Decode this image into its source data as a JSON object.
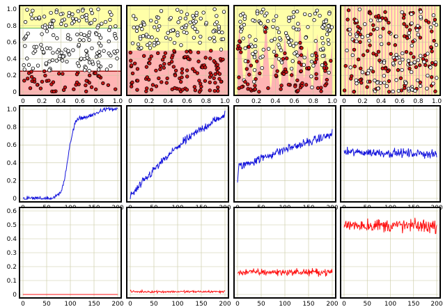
{
  "colors": {
    "panel_border": "#000000",
    "grid": "#c8c8a0",
    "region_high": "#ffffa8",
    "region_low": "#ffb4b4",
    "boundary_good": "#5ab45a",
    "boundary_bad": "#a01010",
    "point_red": "#c81414",
    "point_white": "#ffffff",
    "line_blue": "#1414dc",
    "line_red": "#ff1414"
  },
  "chart_data": [
    {
      "type": "scatter",
      "panel": "r1c1",
      "xlim": [
        0,
        1
      ],
      "ylim": [
        0,
        1
      ],
      "xticks": [
        "0",
        "0.2",
        "0.4",
        "0.6",
        "0.8",
        "1.0"
      ],
      "yticks": [
        "0",
        "0.2",
        "0.4",
        "0.6",
        "0.8",
        "1.0"
      ],
      "region": "two-bands",
      "band_low": [
        0,
        0.25
      ],
      "band_high": [
        0.77,
        1.0
      ],
      "n_points": 220
    },
    {
      "type": "scatter",
      "panel": "r1c2",
      "xlim": [
        0,
        1
      ],
      "ylim": [
        0,
        1
      ],
      "xticks": [
        "0",
        "0.2",
        "0.4",
        "0.6",
        "0.8",
        "1.0"
      ],
      "yticks": [],
      "region": "threshold",
      "threshold": 0.5,
      "n_points": 220
    },
    {
      "type": "scatter",
      "panel": "r1c3",
      "xlim": [
        0,
        1
      ],
      "ylim": [
        0,
        1
      ],
      "xticks": [
        "0",
        "0.2",
        "0.4",
        "0.6",
        "0.8",
        "1.0"
      ],
      "yticks": [],
      "region": "spikes",
      "n_points": 220
    },
    {
      "type": "scatter",
      "panel": "r1c4",
      "xlim": [
        0,
        1
      ],
      "ylim": [
        0,
        1
      ],
      "xticks": [
        "0",
        "0.2",
        "0.4",
        "0.6",
        "0.8",
        "1.0"
      ],
      "yticks": [],
      "region": "stripes",
      "n_points": 220
    },
    {
      "type": "line",
      "panel": "r2c1",
      "series_color": "line_blue",
      "xlim": [
        0,
        200
      ],
      "ylim": [
        0,
        1
      ],
      "xticks": [
        "0",
        "50",
        "100",
        "150",
        "200"
      ],
      "yticks": [
        "0",
        "0.2",
        "0.4",
        "0.6",
        "0.8",
        "1.0"
      ],
      "x": [
        0,
        50,
        60,
        70,
        80,
        88,
        95,
        100,
        105,
        110,
        120,
        130,
        140,
        150,
        160,
        170,
        200
      ],
      "y": [
        0,
        0,
        0,
        0.02,
        0.08,
        0.22,
        0.45,
        0.62,
        0.75,
        0.85,
        0.9,
        0.91,
        0.92,
        0.94,
        0.97,
        1.0,
        1.0
      ],
      "noise": 0.015
    },
    {
      "type": "line",
      "panel": "r2c2",
      "series_color": "line_blue",
      "xlim": [
        0,
        200
      ],
      "ylim": [
        0,
        1
      ],
      "xticks": [
        "0",
        "50",
        "100",
        "150",
        "200"
      ],
      "yticks": [],
      "x": [
        0,
        5,
        50,
        100,
        150,
        200
      ],
      "y": [
        0.03,
        0.05,
        0.32,
        0.58,
        0.78,
        0.94
      ],
      "noise": 0.03
    },
    {
      "type": "line",
      "panel": "r2c3",
      "series_color": "line_blue",
      "xlim": [
        0,
        200
      ],
      "ylim": [
        0,
        1
      ],
      "xticks": [
        "0",
        "50",
        "100",
        "150",
        "200"
      ],
      "yticks": [],
      "x": [
        0,
        3,
        10,
        50,
        100,
        150,
        200
      ],
      "y": [
        0.2,
        0.36,
        0.37,
        0.45,
        0.55,
        0.63,
        0.72
      ],
      "noise": 0.03
    },
    {
      "type": "line",
      "panel": "r2c4",
      "series_color": "line_blue",
      "xlim": [
        0,
        200
      ],
      "ylim": [
        0,
        1
      ],
      "xticks": [
        "0",
        "50",
        "100",
        "150",
        "200"
      ],
      "yticks": [],
      "x": [
        0,
        200
      ],
      "y": [
        0.52,
        0.5
      ],
      "noise": 0.03
    },
    {
      "type": "line",
      "panel": "r3c1",
      "series_color": "line_red",
      "xlim": [
        0,
        200
      ],
      "ylim": [
        0,
        0.6
      ],
      "xticks": [
        "0",
        "50",
        "100",
        "150",
        "200"
      ],
      "yticks": [
        "0",
        "0.1",
        "0.2",
        "0.3",
        "0.4",
        "0.5",
        "0.6"
      ],
      "x": [
        0,
        200
      ],
      "y": [
        0,
        0
      ],
      "noise": 0.0
    },
    {
      "type": "line",
      "panel": "r3c2",
      "series_color": "line_red",
      "xlim": [
        0,
        200
      ],
      "ylim": [
        0,
        0.6
      ],
      "xticks": [
        "0",
        "50",
        "100",
        "150",
        "200"
      ],
      "yticks": [],
      "x": [
        0,
        200
      ],
      "y": [
        0.02,
        0.02
      ],
      "noise": 0.005
    },
    {
      "type": "line",
      "panel": "r3c3",
      "series_color": "line_red",
      "xlim": [
        0,
        200
      ],
      "ylim": [
        0,
        0.6
      ],
      "xticks": [
        "0",
        "50",
        "100",
        "150",
        "200"
      ],
      "yticks": [],
      "x": [
        0,
        200
      ],
      "y": [
        0.16,
        0.16
      ],
      "noise": 0.015
    },
    {
      "type": "line",
      "panel": "r3c4",
      "series_color": "line_red",
      "xlim": [
        0,
        200
      ],
      "ylim": [
        0,
        0.6
      ],
      "xticks": [
        "0",
        "50",
        "100",
        "150",
        "200"
      ],
      "yticks": [],
      "x": [
        0,
        200
      ],
      "y": [
        0.5,
        0.49
      ],
      "noise": 0.03
    }
  ]
}
